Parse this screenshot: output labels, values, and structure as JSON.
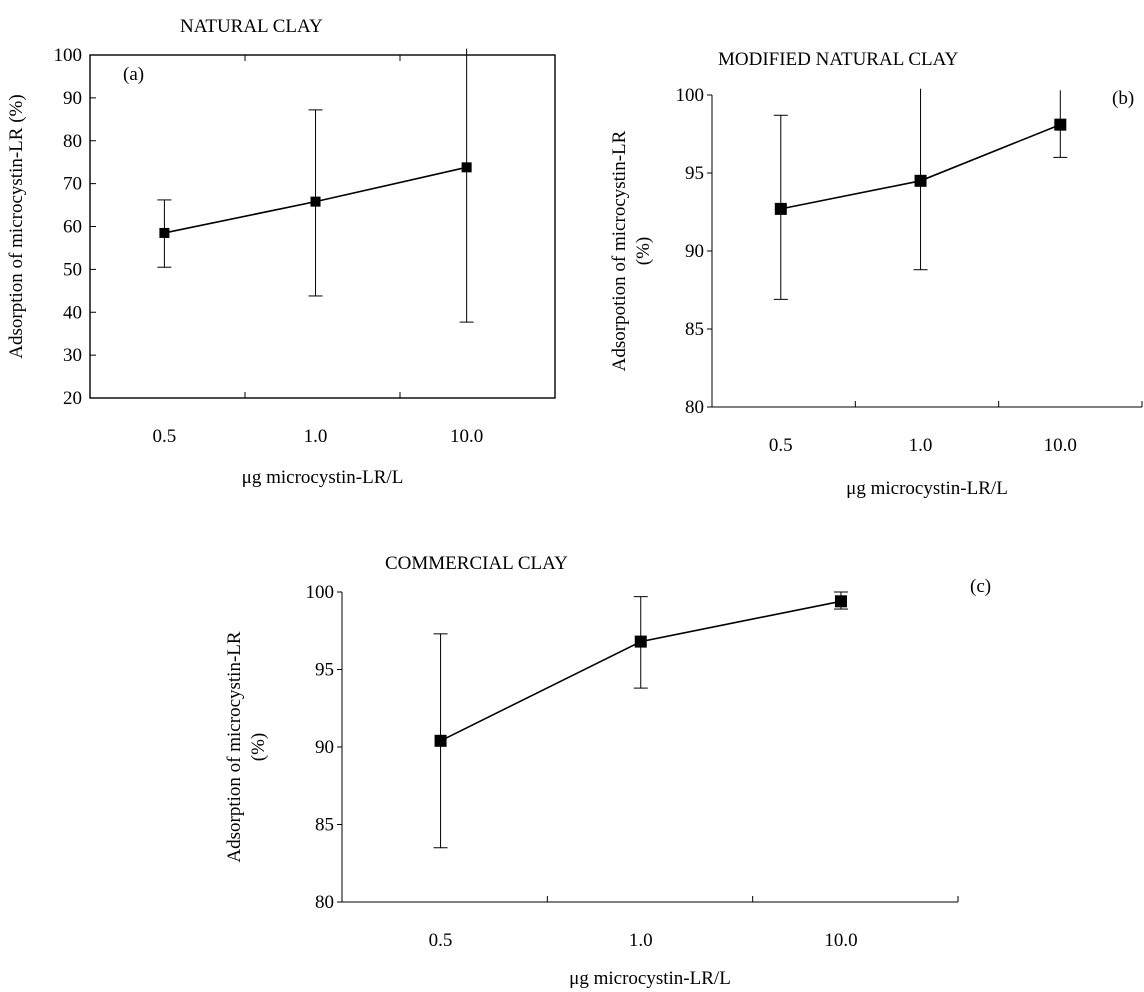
{
  "chart_data": [
    {
      "id": "a",
      "type": "line",
      "title": "NATURAL CLAY",
      "panel_label": "(a)",
      "xlabel": "μg microcystin-LR/L",
      "ylabel": "Adsorption of microcystin-LR (%)",
      "ylabel_lines": [
        "Adsorption of microcystin-LR (%)"
      ],
      "categories": [
        "0.5",
        "1.0",
        "10.0"
      ],
      "values": [
        58.5,
        65.8,
        73.8
      ],
      "error_upper": [
        66.2,
        87.2,
        101.5
      ],
      "error_lower": [
        50.5,
        43.8,
        37.7
      ],
      "ylim": [
        20,
        100
      ],
      "yticks": [
        20,
        30,
        40,
        50,
        60,
        70,
        80,
        90,
        100
      ],
      "frame": "box"
    },
    {
      "id": "b",
      "type": "line",
      "title": "MODIFIED NATURAL CLAY",
      "panel_label": "(b)",
      "xlabel": "μg microcystin-LR/L",
      "ylabel": "Adsorpotion of microcystin-LR (%)",
      "ylabel_lines": [
        "Adsorpotion of microcystin-LR",
        "(%)"
      ],
      "categories": [
        "0.5",
        "1.0",
        "10.0"
      ],
      "values": [
        92.7,
        94.5,
        98.1
      ],
      "error_upper": [
        98.7,
        100.4,
        100.3
      ],
      "error_lower": [
        86.9,
        88.8,
        96.0
      ],
      "ylim": [
        80,
        100
      ],
      "yticks": [
        80,
        85,
        90,
        95,
        100
      ],
      "frame": "axes"
    },
    {
      "id": "c",
      "type": "line",
      "title": "COMMERCIAL CLAY",
      "panel_label": "(c)",
      "xlabel": "μg microcystin-LR/L",
      "ylabel": "Adsorption of microcystin-LR (%)",
      "ylabel_lines": [
        "Adsorption of microcystin-LR",
        "(%)"
      ],
      "categories": [
        "0.5",
        "1.0",
        "10.0"
      ],
      "values": [
        90.4,
        96.8,
        99.4
      ],
      "error_upper": [
        97.3,
        99.7,
        100.0
      ],
      "error_lower": [
        83.5,
        93.8,
        98.9
      ],
      "ylim": [
        80,
        100
      ],
      "yticks": [
        80,
        85,
        90,
        95,
        100
      ],
      "frame": "axes"
    }
  ]
}
